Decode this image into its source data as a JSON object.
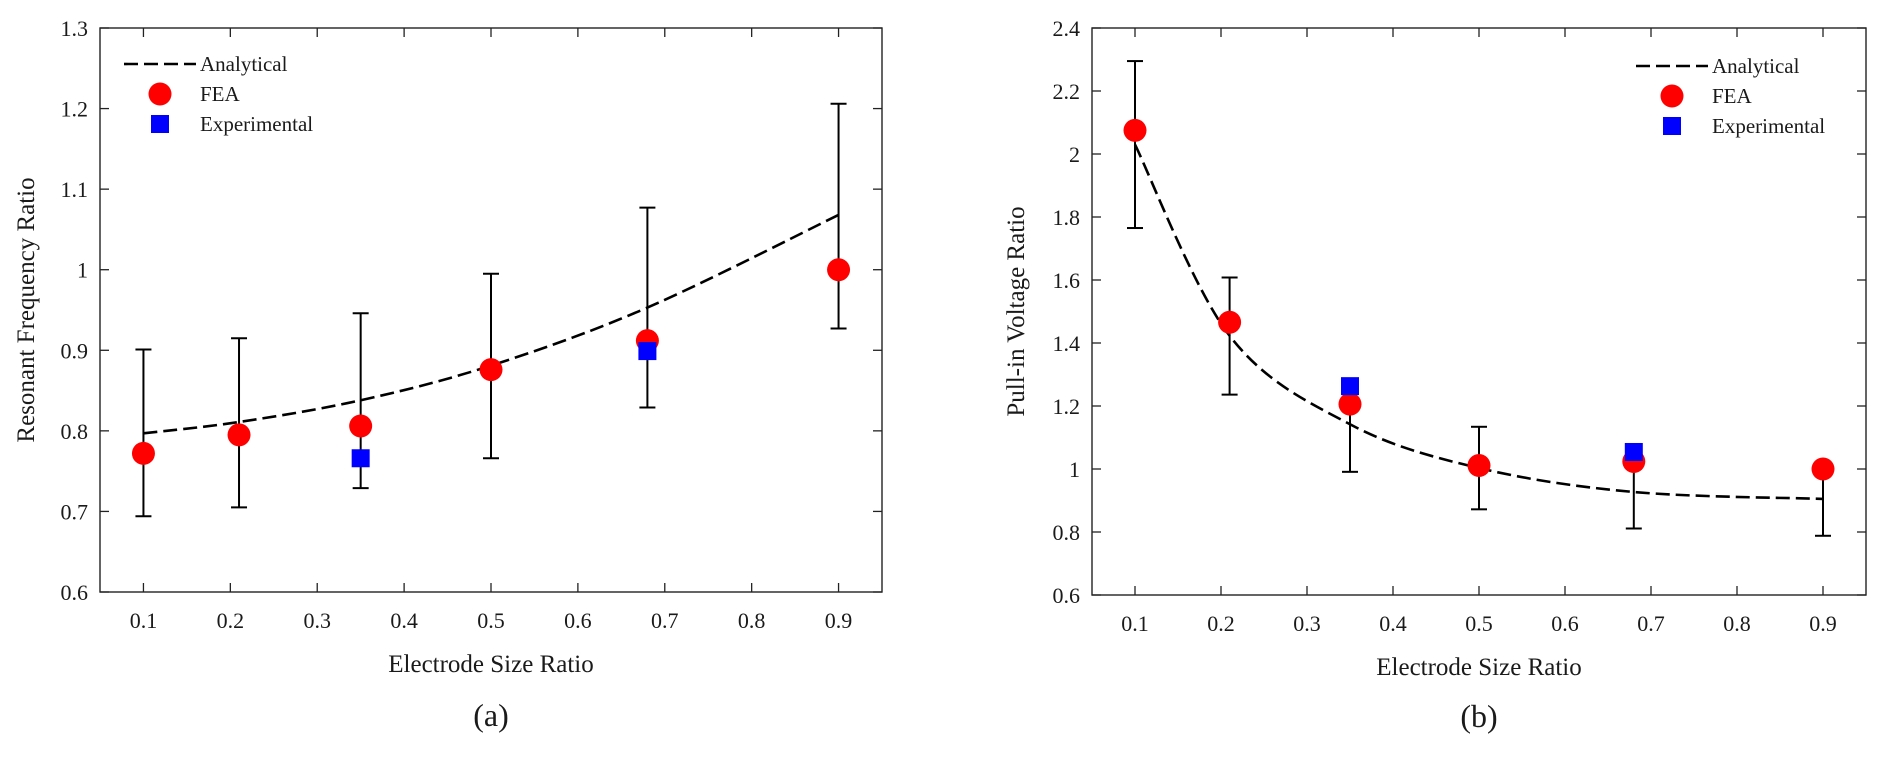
{
  "chart_data": [
    {
      "id": "a",
      "type": "line+scatter",
      "caption": "(a)",
      "xlabel": "Electrode Size Ratio",
      "ylabel": "Resonant Frequency Ratio",
      "xlim": [
        0.05,
        0.95
      ],
      "ylim": [
        0.6,
        1.3
      ],
      "xticks": [
        0.1,
        0.2,
        0.3,
        0.4,
        0.5,
        0.6,
        0.7,
        0.8,
        0.9
      ],
      "yticks": [
        0.6,
        0.7,
        0.8,
        0.9,
        1.0,
        1.1,
        1.2,
        1.3
      ],
      "xtick_labels": [
        "0.1",
        "0.2",
        "0.3",
        "0.4",
        "0.5",
        "0.6",
        "0.7",
        "0.8",
        "0.9"
      ],
      "ytick_labels": [
        "0.6",
        "0.7",
        "0.8",
        "0.9",
        "1",
        "1.1",
        "1.2",
        "1.3"
      ],
      "legend_position": "top-left",
      "series": [
        {
          "name": "Analytical",
          "kind": "dashed-line",
          "color": "#000000",
          "x": [
            0.1,
            0.21,
            0.35,
            0.5,
            0.68,
            0.9
          ],
          "y": [
            0.797,
            0.811,
            0.838,
            0.881,
            0.953,
            1.068
          ]
        },
        {
          "name": "FEA",
          "kind": "circle",
          "color": "#ff0000",
          "x": [
            0.1,
            0.21,
            0.35,
            0.5,
            0.68,
            0.9
          ],
          "y": [
            0.772,
            0.795,
            0.806,
            0.876,
            0.912,
            1.0
          ]
        },
        {
          "name": "Experimental",
          "kind": "square",
          "color": "#0000ff",
          "x": [
            0.35,
            0.68
          ],
          "y": [
            0.766,
            0.899
          ]
        }
      ],
      "error_bars": [
        {
          "x": 0.1,
          "low": 0.694,
          "high": 0.901
        },
        {
          "x": 0.21,
          "low": 0.705,
          "high": 0.915
        },
        {
          "x": 0.35,
          "low": 0.729,
          "high": 0.946
        },
        {
          "x": 0.5,
          "low": 0.766,
          "high": 0.995
        },
        {
          "x": 0.68,
          "low": 0.829,
          "high": 1.077
        },
        {
          "x": 0.9,
          "low": 0.927,
          "high": 1.206
        }
      ]
    },
    {
      "id": "b",
      "type": "line+scatter",
      "caption": "(b)",
      "xlabel": "Electrode Size Ratio",
      "ylabel": "Pull-in Voltage Ratio",
      "xlim": [
        0.05,
        0.95
      ],
      "ylim": [
        0.6,
        2.4
      ],
      "xticks": [
        0.1,
        0.2,
        0.3,
        0.4,
        0.5,
        0.6,
        0.7,
        0.8,
        0.9
      ],
      "yticks": [
        0.6,
        0.8,
        1.0,
        1.2,
        1.4,
        1.6,
        1.8,
        2.0,
        2.2,
        2.4
      ],
      "xtick_labels": [
        "0.1",
        "0.2",
        "0.3",
        "0.4",
        "0.5",
        "0.6",
        "0.7",
        "0.8",
        "0.9"
      ],
      "ytick_labels": [
        "0.6",
        "0.8",
        "1",
        "1.2",
        "1.4",
        "1.6",
        "1.8",
        "2",
        "2.2",
        "2.4"
      ],
      "legend_position": "top-right",
      "series": [
        {
          "name": "Analytical",
          "kind": "dashed-line",
          "color": "#000000",
          "x": [
            0.1,
            0.21,
            0.35,
            0.5,
            0.68,
            0.9
          ],
          "y": [
            2.03,
            1.423,
            1.142,
            1.003,
            0.927,
            0.905
          ]
        },
        {
          "name": "FEA",
          "kind": "circle",
          "color": "#ff0000",
          "x": [
            0.1,
            0.21,
            0.35,
            0.5,
            0.68,
            0.9
          ],
          "y": [
            2.075,
            1.466,
            1.206,
            1.011,
            1.024,
            1.0
          ]
        },
        {
          "name": "Experimental",
          "kind": "square",
          "color": "#0000ff",
          "x": [
            0.35,
            0.68
          ],
          "y": [
            1.263,
            1.054
          ]
        }
      ],
      "error_bars": [
        {
          "x": 0.1,
          "low": 1.765,
          "high": 2.295
        },
        {
          "x": 0.21,
          "low": 1.236,
          "high": 1.608
        },
        {
          "x": 0.35,
          "low": 0.991,
          "high": 1.285
        },
        {
          "x": 0.5,
          "low": 0.872,
          "high": 1.134
        },
        {
          "x": 0.68,
          "low": 0.811,
          "high": 1.049
        },
        {
          "x": 0.9,
          "low": 0.788,
          "high": 1.022
        }
      ]
    }
  ]
}
